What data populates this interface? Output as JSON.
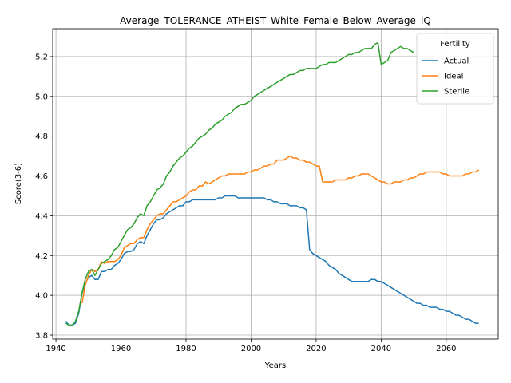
{
  "chart_data": {
    "type": "line",
    "title": "Average_TOLERANCE_ATHEIST_White_Female_Below_Average_IQ",
    "xlabel": "Years",
    "ylabel": "Score(3-6)",
    "xlim": [
      1939,
      2076
    ],
    "ylim": [
      3.78,
      5.34
    ],
    "xticks": [
      1940,
      1960,
      1980,
      2000,
      2020,
      2040,
      2060
    ],
    "yticks": [
      3.8,
      4.0,
      4.2,
      4.4,
      4.6,
      4.8,
      5.0,
      5.2
    ],
    "grid": true,
    "legend": {
      "title": "Fertility",
      "placement": "upper right"
    },
    "series": [
      {
        "name": "Actual",
        "color": "#1f77b4",
        "x": [
          1943,
          1944,
          1945,
          1946,
          1947,
          1948,
          1949,
          1950,
          1951,
          1952,
          1953,
          1954,
          1955,
          1956,
          1957,
          1958,
          1959,
          1960,
          1961,
          1962,
          1963,
          1964,
          1965,
          1966,
          1967,
          1968,
          1969,
          1970,
          1971,
          1972,
          1973,
          1974,
          1975,
          1976,
          1977,
          1978,
          1979,
          1980,
          1981,
          1982,
          1983,
          1984,
          1985,
          1986,
          1987,
          1988,
          1989,
          1990,
          1991,
          1992,
          1993,
          1994,
          1995,
          1996,
          1997,
          1998,
          1999,
          2000,
          2001,
          2002,
          2003,
          2004,
          2005,
          2006,
          2007,
          2008,
          2009,
          2010,
          2011,
          2012,
          2013,
          2014,
          2015,
          2016,
          2017,
          2018,
          2019,
          2020,
          2021,
          2022,
          2023,
          2024,
          2025,
          2026,
          2027,
          2028,
          2029,
          2030,
          2031,
          2032,
          2033,
          2034,
          2035,
          2036,
          2037,
          2038,
          2039,
          2040,
          2041,
          2042,
          2043,
          2044,
          2045,
          2046,
          2047,
          2048,
          2049,
          2050,
          2051,
          2052,
          2053,
          2054,
          2055,
          2056,
          2057,
          2058,
          2059,
          2060,
          2061,
          2062,
          2063,
          2064,
          2065,
          2066,
          2067,
          2068,
          2069,
          2070
        ],
        "values": [
          3.87,
          3.85,
          3.85,
          3.86,
          3.91,
          4.01,
          4.06,
          4.09,
          4.1,
          4.08,
          4.08,
          4.12,
          4.12,
          4.13,
          4.13,
          4.15,
          4.16,
          4.18,
          4.21,
          4.22,
          4.22,
          4.23,
          4.26,
          4.27,
          4.26,
          4.3,
          4.33,
          4.36,
          4.38,
          4.38,
          4.39,
          4.41,
          4.42,
          4.43,
          4.44,
          4.45,
          4.45,
          4.47,
          4.47,
          4.48,
          4.48,
          4.48,
          4.48,
          4.48,
          4.48,
          4.48,
          4.48,
          4.49,
          4.49,
          4.5,
          4.5,
          4.5,
          4.5,
          4.49,
          4.49,
          4.49,
          4.49,
          4.49,
          4.49,
          4.49,
          4.49,
          4.49,
          4.48,
          4.48,
          4.47,
          4.47,
          4.46,
          4.46,
          4.46,
          4.45,
          4.45,
          4.45,
          4.44,
          4.44,
          4.43,
          4.23,
          4.21,
          4.2,
          4.19,
          4.18,
          4.17,
          4.15,
          4.14,
          4.13,
          4.11,
          4.1,
          4.09,
          4.08,
          4.07,
          4.07,
          4.07,
          4.07,
          4.07,
          4.07,
          4.08,
          4.08,
          4.07,
          4.07,
          4.06,
          4.05,
          4.04,
          4.03,
          4.02,
          4.01,
          4.0,
          3.99,
          3.98,
          3.97,
          3.96,
          3.96,
          3.95,
          3.95,
          3.94,
          3.94,
          3.94,
          3.93,
          3.93,
          3.92,
          3.92,
          3.91,
          3.9,
          3.9,
          3.89,
          3.88,
          3.88,
          3.87,
          3.86,
          3.86
        ]
      },
      {
        "name": "Ideal",
        "color": "#ff7f0e",
        "x": [
          1948,
          1949,
          1950,
          1951,
          1952,
          1953,
          1954,
          1955,
          1956,
          1957,
          1958,
          1959,
          1960,
          1961,
          1962,
          1963,
          1964,
          1965,
          1966,
          1967,
          1968,
          1969,
          1970,
          1971,
          1972,
          1973,
          1974,
          1975,
          1976,
          1977,
          1978,
          1979,
          1980,
          1981,
          1982,
          1983,
          1984,
          1985,
          1986,
          1987,
          1988,
          1989,
          1990,
          1991,
          1992,
          1993,
          1994,
          1995,
          1996,
          1997,
          1998,
          1999,
          2000,
          2001,
          2002,
          2003,
          2004,
          2005,
          2006,
          2007,
          2008,
          2009,
          2010,
          2011,
          2012,
          2013,
          2014,
          2015,
          2016,
          2017,
          2018,
          2019,
          2020,
          2021,
          2022,
          2023,
          2024,
          2025,
          2026,
          2027,
          2028,
          2029,
          2030,
          2031,
          2032,
          2033,
          2034,
          2035,
          2036,
          2037,
          2038,
          2039,
          2040,
          2041,
          2042,
          2043,
          2044,
          2045,
          2046,
          2047,
          2048,
          2049,
          2050,
          2051,
          2052,
          2053,
          2054,
          2055,
          2056,
          2057,
          2058,
          2059,
          2060,
          2061,
          2062,
          2063,
          2064,
          2065,
          2066,
          2067,
          2068,
          2069,
          2070
        ],
        "values": [
          3.96,
          4.05,
          4.1,
          4.13,
          4.12,
          4.13,
          4.17,
          4.16,
          4.17,
          4.17,
          4.17,
          4.18,
          4.2,
          4.24,
          4.25,
          4.26,
          4.26,
          4.28,
          4.29,
          4.29,
          4.33,
          4.36,
          4.38,
          4.4,
          4.41,
          4.41,
          4.43,
          4.45,
          4.47,
          4.47,
          4.48,
          4.49,
          4.5,
          4.52,
          4.53,
          4.53,
          4.55,
          4.55,
          4.57,
          4.56,
          4.57,
          4.58,
          4.59,
          4.6,
          4.6,
          4.61,
          4.61,
          4.61,
          4.61,
          4.61,
          4.61,
          4.62,
          4.62,
          4.63,
          4.63,
          4.64,
          4.65,
          4.65,
          4.66,
          4.66,
          4.68,
          4.68,
          4.68,
          4.69,
          4.7,
          4.69,
          4.69,
          4.68,
          4.68,
          4.67,
          4.67,
          4.66,
          4.65,
          4.65,
          4.57,
          4.57,
          4.57,
          4.57,
          4.58,
          4.58,
          4.58,
          4.58,
          4.59,
          4.59,
          4.6,
          4.6,
          4.61,
          4.61,
          4.61,
          4.6,
          4.59,
          4.58,
          4.57,
          4.57,
          4.56,
          4.56,
          4.57,
          4.57,
          4.57,
          4.58,
          4.58,
          4.59,
          4.59,
          4.6,
          4.61,
          4.61,
          4.62,
          4.62,
          4.62,
          4.62,
          4.62,
          4.61,
          4.61,
          4.6,
          4.6,
          4.6,
          4.6,
          4.6,
          4.61,
          4.61,
          4.62,
          4.62,
          4.63
        ]
      },
      {
        "name": "Sterile",
        "color": "#2ca02c",
        "x": [
          1943,
          1944,
          1945,
          1946,
          1947,
          1948,
          1949,
          1950,
          1951,
          1952,
          1953,
          1954,
          1955,
          1956,
          1957,
          1958,
          1959,
          1960,
          1961,
          1962,
          1963,
          1964,
          1965,
          1966,
          1967,
          1968,
          1969,
          1970,
          1971,
          1972,
          1973,
          1974,
          1975,
          1976,
          1977,
          1978,
          1979,
          1980,
          1981,
          1982,
          1983,
          1984,
          1985,
          1986,
          1987,
          1988,
          1989,
          1990,
          1991,
          1992,
          1993,
          1994,
          1995,
          1996,
          1997,
          1998,
          1999,
          2000,
          2001,
          2002,
          2003,
          2004,
          2005,
          2006,
          2007,
          2008,
          2009,
          2010,
          2011,
          2012,
          2013,
          2014,
          2015,
          2016,
          2017,
          2018,
          2019,
          2020,
          2021,
          2022,
          2023,
          2024,
          2025,
          2026,
          2027,
          2028,
          2029,
          2030,
          2031,
          2032,
          2033,
          2034,
          2035,
          2036,
          2037,
          2038,
          2039,
          2040,
          2041,
          2042,
          2043,
          2044,
          2045,
          2046,
          2047,
          2048,
          2049,
          2050
        ],
        "values": [
          3.86,
          3.85,
          3.85,
          3.87,
          3.92,
          4.01,
          4.08,
          4.12,
          4.13,
          4.1,
          4.13,
          4.16,
          4.17,
          4.18,
          4.2,
          4.23,
          4.24,
          4.27,
          4.3,
          4.33,
          4.34,
          4.36,
          4.39,
          4.41,
          4.4,
          4.45,
          4.47,
          4.5,
          4.53,
          4.54,
          4.56,
          4.6,
          4.62,
          4.65,
          4.67,
          4.69,
          4.7,
          4.72,
          4.74,
          4.75,
          4.77,
          4.79,
          4.8,
          4.81,
          4.83,
          4.84,
          4.86,
          4.87,
          4.88,
          4.9,
          4.91,
          4.92,
          4.94,
          4.95,
          4.96,
          4.96,
          4.97,
          4.98,
          5.0,
          5.01,
          5.02,
          5.03,
          5.04,
          5.05,
          5.06,
          5.07,
          5.08,
          5.09,
          5.1,
          5.11,
          5.11,
          5.12,
          5.13,
          5.13,
          5.14,
          5.14,
          5.14,
          5.14,
          5.15,
          5.16,
          5.16,
          5.17,
          5.17,
          5.17,
          5.18,
          5.19,
          5.2,
          5.21,
          5.21,
          5.22,
          5.22,
          5.23,
          5.24,
          5.24,
          5.24,
          5.26,
          5.27,
          5.16,
          5.17,
          5.18,
          5.22,
          5.23,
          5.24,
          5.25,
          5.24,
          5.24,
          5.23,
          5.22
        ]
      }
    ]
  }
}
